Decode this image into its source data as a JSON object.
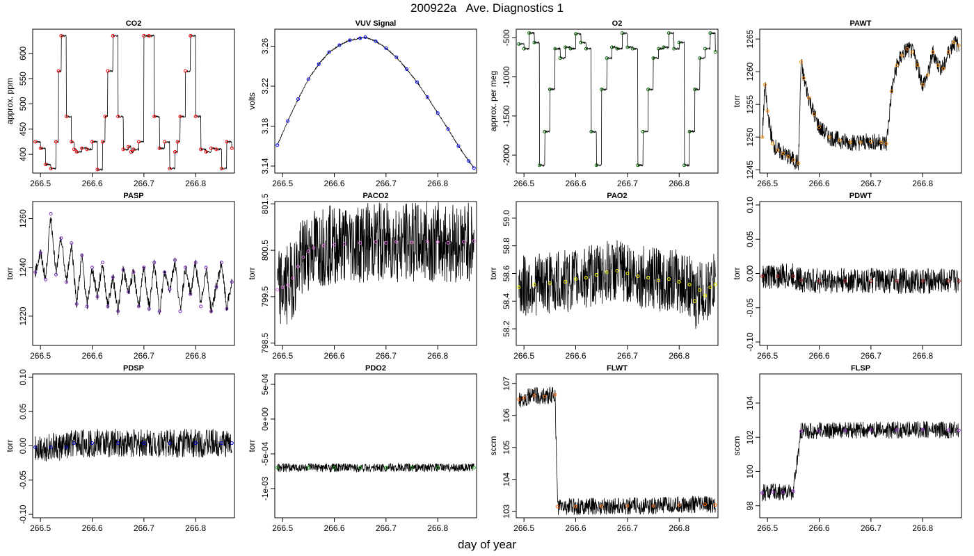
{
  "figure": {
    "title": "200922a   Ave. Diagnostics 1",
    "xlabel": "day of year"
  },
  "chart_data": [
    {
      "type": "line",
      "title": "CO2",
      "ylabel": "approx. ppm",
      "xlim": [
        266.485,
        266.875
      ],
      "ylim": [
        363,
        648
      ],
      "xticks": [
        266.5,
        266.6,
        266.7,
        266.8
      ],
      "xtick_labels": [
        "266.5",
        "266.6",
        "266.7",
        "266.8"
      ],
      "yticks": [
        400,
        450,
        500,
        550,
        600
      ],
      "ytick_labels": [
        "400",
        "450",
        "500",
        "550",
        "600"
      ],
      "marker_color": "#ff0000",
      "series": [
        {
          "x": [
            266.49,
            266.5,
            266.51,
            266.52,
            266.53,
            266.535,
            266.54,
            266.55,
            266.56,
            266.565,
            266.57,
            266.58,
            266.59,
            266.6,
            266.61,
            266.62,
            266.625,
            266.63,
            266.64,
            266.65,
            266.66,
            266.67,
            266.675,
            266.68,
            266.69,
            266.7,
            266.71,
            266.72,
            266.73,
            266.74,
            266.75,
            266.76,
            266.765,
            266.77,
            266.78,
            266.79,
            266.8,
            266.81,
            266.82,
            266.83,
            266.84,
            266.85,
            266.86,
            266.87
          ],
          "y": [
            425,
            412,
            380,
            372,
            425,
            565,
            635,
            475,
            425,
            410,
            405,
            412,
            410,
            425,
            370,
            425,
            475,
            565,
            635,
            475,
            410,
            415,
            405,
            410,
            425,
            635,
            635,
            475,
            412,
            425,
            372,
            405,
            425,
            475,
            565,
            635,
            475,
            410,
            405,
            412,
            410,
            372,
            425,
            412
          ]
        }
      ]
    },
    {
      "type": "line",
      "title": "VUV Signal",
      "ylabel": "volts",
      "xlim": [
        266.485,
        266.875
      ],
      "ylim": [
        3.133,
        3.277
      ],
      "xticks": [
        266.5,
        266.6,
        266.7,
        266.8
      ],
      "xtick_labels": [
        "266.5",
        "266.6",
        "266.7",
        "266.8"
      ],
      "yticks": [
        3.14,
        3.18,
        3.22,
        3.26
      ],
      "ytick_labels": [
        "3.14",
        "3.18",
        "3.22",
        "3.26"
      ],
      "marker_color": "#0000ff",
      "series": [
        {
          "x": [
            266.49,
            266.51,
            266.53,
            266.55,
            266.57,
            266.59,
            266.61,
            266.63,
            266.65,
            266.66,
            266.68,
            266.7,
            266.72,
            266.74,
            266.76,
            266.78,
            266.8,
            266.82,
            266.84,
            266.86,
            266.87
          ],
          "y": [
            3.161,
            3.185,
            3.207,
            3.227,
            3.242,
            3.254,
            3.261,
            3.266,
            3.268,
            3.269,
            3.265,
            3.258,
            3.249,
            3.237,
            3.224,
            3.209,
            3.193,
            3.177,
            3.16,
            3.145,
            3.138
          ]
        }
      ]
    },
    {
      "type": "line",
      "title": "O2",
      "ylabel": "approx. per meg",
      "xlim": [
        266.485,
        266.875
      ],
      "ylim": [
        -2230,
        -390
      ],
      "xticks": [
        266.5,
        266.6,
        266.7,
        266.8
      ],
      "xtick_labels": [
        "266.5",
        "266.6",
        "266.7",
        "266.8"
      ],
      "yticks": [
        -2000,
        -1500,
        -1000,
        -500
      ],
      "ytick_labels": [
        "-2000",
        "-1500",
        "-1000",
        "-500"
      ],
      "marker_color": "#006400",
      "series": [
        {
          "x": [
            266.49,
            266.5,
            266.51,
            266.52,
            266.53,
            266.54,
            266.55,
            266.56,
            266.57,
            266.58,
            266.59,
            266.6,
            266.61,
            266.62,
            266.63,
            266.64,
            266.65,
            266.66,
            266.67,
            266.68,
            266.69,
            266.7,
            266.71,
            266.72,
            266.73,
            266.74,
            266.75,
            266.76,
            266.77,
            266.78,
            266.79,
            266.8,
            266.81,
            266.82,
            266.83,
            266.84,
            266.85,
            266.86,
            266.87
          ],
          "y": [
            -580,
            -640,
            -440,
            -560,
            -2130,
            -1700,
            -1160,
            -640,
            -760,
            -620,
            -640,
            -450,
            -560,
            -640,
            -1700,
            -2130,
            -1160,
            -760,
            -620,
            -640,
            -440,
            -620,
            -640,
            -2130,
            -1700,
            -1160,
            -760,
            -640,
            -620,
            -440,
            -640,
            -560,
            -2130,
            -1700,
            -1160,
            -760,
            -640,
            -440,
            -680
          ]
        }
      ]
    },
    {
      "type": "line",
      "title": "PAWT",
      "ylabel": "torr",
      "xlim": [
        266.485,
        266.875
      ],
      "ylim": [
        1244.5,
        1266.5
      ],
      "xticks": [
        266.5,
        266.6,
        266.7,
        266.8
      ],
      "xtick_labels": [
        "266.5",
        "266.6",
        "266.7",
        "266.8"
      ],
      "yticks": [
        1245,
        1250,
        1255,
        1260,
        1265
      ],
      "ytick_labels": [
        "1245",
        "1250",
        "1255",
        "1260",
        "1265"
      ],
      "marker_color": "#ff8c00",
      "series": [
        {
          "x": [
            266.49,
            266.495,
            266.5,
            266.51,
            266.52,
            266.53,
            266.54,
            266.55,
            266.56,
            266.565,
            266.57,
            266.58,
            266.59,
            266.6,
            266.62,
            266.64,
            266.66,
            266.68,
            266.7,
            266.72,
            266.73,
            266.74,
            266.75,
            266.76,
            266.77,
            266.78,
            266.79,
            266.8,
            266.81,
            266.82,
            266.83,
            266.84,
            266.85,
            266.86,
            266.87
          ],
          "y": [
            1250,
            1258,
            1254,
            1249,
            1248,
            1247.5,
            1247,
            1246.5,
            1246,
            1261.5,
            1259,
            1256,
            1253.5,
            1251.5,
            1250,
            1249.5,
            1249.2,
            1249.2,
            1249.3,
            1249.2,
            1249,
            1257,
            1261,
            1262.5,
            1263.5,
            1263,
            1261,
            1258,
            1259.5,
            1263,
            1261,
            1260.5,
            1263,
            1264.5,
            1264
          ]
        }
      ]
    },
    {
      "type": "line",
      "title": "PASP",
      "ylabel": "torr",
      "xlim": [
        266.485,
        266.875
      ],
      "ylim": [
        1208,
        1267
      ],
      "xticks": [
        266.5,
        266.6,
        266.7,
        266.8
      ],
      "xtick_labels": [
        "266.5",
        "266.6",
        "266.7",
        "266.8"
      ],
      "yticks": [
        1220,
        1240,
        1260
      ],
      "ytick_labels": [
        "1220",
        "1240",
        "1260"
      ],
      "marker_color": "#7b2fbe",
      "series": [
        {
          "x": [
            266.49,
            266.5,
            266.51,
            266.52,
            266.53,
            266.54,
            266.55,
            266.56,
            266.57,
            266.58,
            266.59,
            266.6,
            266.61,
            266.62,
            266.63,
            266.64,
            266.65,
            266.66,
            266.67,
            266.68,
            266.69,
            266.7,
            266.71,
            266.72,
            266.73,
            266.74,
            266.75,
            266.76,
            266.77,
            266.78,
            266.79,
            266.8,
            266.81,
            266.82,
            266.83,
            266.84,
            266.85,
            266.86,
            266.87
          ],
          "y": [
            1238,
            1246,
            1235,
            1262,
            1237,
            1252,
            1234,
            1250,
            1225,
            1245,
            1224,
            1240,
            1228,
            1242,
            1224,
            1236,
            1222,
            1239,
            1230,
            1238,
            1224,
            1240,
            1223,
            1242,
            1222,
            1238,
            1231,
            1243,
            1222,
            1240,
            1229,
            1242,
            1224,
            1240,
            1222,
            1232,
            1242,
            1223,
            1234
          ]
        }
      ]
    },
    {
      "type": "line",
      "title": "PACO2",
      "ylabel": "torr",
      "xlim": [
        266.485,
        266.875
      ],
      "ylim": [
        798.45,
        801.55
      ],
      "xticks": [
        266.5,
        266.6,
        266.7,
        266.8
      ],
      "xtick_labels": [
        "266.5",
        "266.6",
        "266.7",
        "266.8"
      ],
      "yticks": [
        798.5,
        799.5,
        800.5,
        801.5
      ],
      "ytick_labels": [
        "798.5",
        "799.5",
        "800.5",
        "801.5"
      ],
      "marker_color": "#da70d6",
      "series": [
        {
          "x": [
            266.49,
            266.5,
            266.51,
            266.52,
            266.53,
            266.54,
            266.55,
            266.56,
            266.58,
            266.6,
            266.62,
            266.65,
            266.68,
            266.7,
            266.72,
            266.75,
            266.78,
            266.8,
            266.82,
            266.85,
            266.87
          ],
          "y": [
            799.65,
            799.7,
            799.75,
            799.9,
            800.15,
            800.35,
            800.48,
            800.55,
            800.6,
            800.62,
            800.64,
            800.66,
            800.68,
            800.66,
            800.68,
            800.67,
            800.69,
            800.68,
            800.66,
            800.68,
            800.7
          ]
        }
      ]
    },
    {
      "type": "line",
      "title": "PAO2",
      "ylabel": "torr",
      "xlim": [
        266.485,
        266.875
      ],
      "ylim": [
        58.08,
        59.12
      ],
      "xticks": [
        266.5,
        266.6,
        266.7,
        266.8
      ],
      "xtick_labels": [
        "266.5",
        "266.6",
        "266.7",
        "266.8"
      ],
      "yticks": [
        58.2,
        58.4,
        58.6,
        58.8,
        59.0
      ],
      "ytick_labels": [
        "58.2",
        "58.4",
        "58.6",
        "58.8",
        "59.0"
      ],
      "marker_color": "#ffff00",
      "series": [
        {
          "x": [
            266.49,
            266.52,
            266.55,
            266.58,
            266.6,
            266.62,
            266.64,
            266.66,
            266.68,
            266.7,
            266.72,
            266.74,
            266.76,
            266.78,
            266.8,
            266.82,
            266.83,
            266.84,
            266.85,
            266.86,
            266.87
          ],
          "y": [
            58.5,
            58.52,
            58.53,
            58.54,
            58.56,
            58.57,
            58.59,
            58.61,
            58.62,
            58.6,
            58.58,
            58.57,
            58.55,
            58.56,
            58.54,
            58.52,
            58.4,
            58.48,
            58.44,
            58.5,
            58.52
          ]
        }
      ]
    },
    {
      "type": "line",
      "title": "PDWT",
      "ylabel": "torr",
      "xlim": [
        266.485,
        266.875
      ],
      "ylim": [
        -0.105,
        0.105
      ],
      "xticks": [
        266.5,
        266.6,
        266.7,
        266.8
      ],
      "xtick_labels": [
        "266.5",
        "266.6",
        "266.7",
        "266.8"
      ],
      "yticks": [
        -0.1,
        -0.05,
        0.0,
        0.05,
        0.1
      ],
      "ytick_labels": [
        "-0.10",
        "-0.05",
        "0.00",
        "0.05",
        "0.10"
      ],
      "marker_color": "#b22222",
      "series": [
        {
          "x": [
            266.49,
            266.52,
            266.55,
            266.565,
            266.6,
            266.65,
            266.7,
            266.75,
            266.8,
            266.85,
            266.87
          ],
          "y": [
            -0.004,
            -0.004,
            -0.004,
            -0.01,
            -0.011,
            -0.011,
            -0.011,
            -0.011,
            -0.011,
            -0.011,
            -0.011
          ]
        }
      ]
    },
    {
      "type": "line",
      "title": "PDSP",
      "ylabel": "torr",
      "xlim": [
        266.485,
        266.875
      ],
      "ylim": [
        -0.105,
        0.105
      ],
      "xticks": [
        266.5,
        266.6,
        266.7,
        266.8
      ],
      "xtick_labels": [
        "266.5",
        "266.6",
        "266.7",
        "266.8"
      ],
      "yticks": [
        -0.1,
        -0.05,
        0.0,
        0.05,
        0.1
      ],
      "ytick_labels": [
        "-0.10",
        "-0.05",
        "0.00",
        "0.05",
        "0.10"
      ],
      "marker_color": "#0000cd",
      "series": [
        {
          "x": [
            266.49,
            266.52,
            266.55,
            266.565,
            266.6,
            266.65,
            266.7,
            266.75,
            266.8,
            266.85,
            266.87
          ],
          "y": [
            -0.002,
            -0.002,
            -0.002,
            0.004,
            0.004,
            0.004,
            0.004,
            0.004,
            0.004,
            0.004,
            0.004
          ]
        }
      ]
    },
    {
      "type": "line",
      "title": "PDO2",
      "ylabel": "torr",
      "xlim": [
        266.485,
        266.875
      ],
      "ylim": [
        -0.00142,
        0.00065
      ],
      "xticks": [
        266.5,
        266.6,
        266.7,
        266.8
      ],
      "xtick_labels": [
        "266.5",
        "266.6",
        "266.7",
        "266.8"
      ],
      "yticks": [
        -0.001,
        -0.0005,
        0.0,
        0.0005
      ],
      "ytick_labels": [
        "-1e-03",
        "-5e-04",
        "0e+00",
        "5e-04"
      ],
      "marker_color": "#22aa22",
      "series": [
        {
          "x": [
            266.49,
            266.55,
            266.6,
            266.65,
            266.7,
            266.75,
            266.8,
            266.87
          ],
          "y": [
            -0.0007,
            -0.0007,
            -0.0007,
            -0.0007,
            -0.0007,
            -0.0007,
            -0.0007,
            -0.0007
          ]
        }
      ]
    },
    {
      "type": "line",
      "title": "FLWT",
      "ylabel": "sccm",
      "xlim": [
        266.485,
        266.875
      ],
      "ylim": [
        102.8,
        107.3
      ],
      "xticks": [
        266.5,
        266.6,
        266.7,
        266.8
      ],
      "xtick_labels": [
        "266.5",
        "266.6",
        "266.7",
        "266.8"
      ],
      "yticks": [
        103,
        104,
        105,
        106,
        107
      ],
      "ytick_labels": [
        "103",
        "104",
        "105",
        "106",
        "107"
      ],
      "marker_color": "#ff6600",
      "series": [
        {
          "x": [
            266.49,
            266.5,
            266.52,
            266.54,
            266.56,
            266.565,
            266.6,
            266.65,
            266.7,
            266.75,
            266.8,
            266.85,
            266.87
          ],
          "y": [
            106.5,
            106.55,
            106.62,
            106.6,
            106.65,
            103.15,
            103.15,
            103.16,
            103.17,
            103.17,
            103.2,
            103.22,
            103.2
          ]
        }
      ]
    },
    {
      "type": "line",
      "title": "FLSP",
      "ylabel": "sccm",
      "xlim": [
        266.485,
        266.875
      ],
      "ylim": [
        97.3,
        105.7
      ],
      "xticks": [
        266.5,
        266.6,
        266.7,
        266.8
      ],
      "xtick_labels": [
        "266.5",
        "266.6",
        "266.7",
        "266.8"
      ],
      "yticks": [
        98,
        100,
        102,
        104
      ],
      "ytick_labels": [
        "98",
        "100",
        "102",
        "104"
      ],
      "marker_color": "#9932cc",
      "series": [
        {
          "x": [
            266.49,
            266.51,
            266.53,
            266.55,
            266.565,
            266.6,
            266.65,
            266.7,
            266.75,
            266.8,
            266.85,
            266.87
          ],
          "y": [
            98.75,
            98.8,
            98.8,
            98.85,
            102.35,
            102.38,
            102.4,
            102.42,
            102.42,
            102.45,
            102.42,
            102.4
          ]
        }
      ]
    }
  ]
}
